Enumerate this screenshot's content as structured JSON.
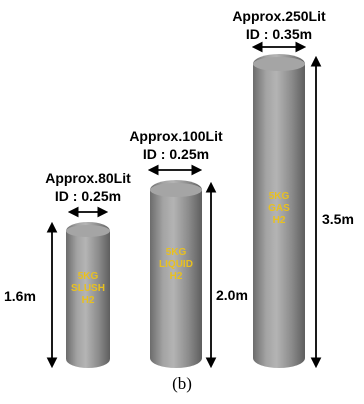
{
  "tanks": [
    {
      "capacity_label": "Approx.80Lit",
      "id_label": "ID : 0.25m",
      "content_lines": [
        "5KG",
        "SLUSH",
        "H2"
      ],
      "height_label": "1.6m"
    },
    {
      "capacity_label": "Approx.100Lit",
      "id_label": "ID : 0.25m",
      "content_lines": [
        "5KG",
        "LIQUID",
        "H2"
      ],
      "height_label": "2.0m"
    },
    {
      "capacity_label": "Approx.250Lit",
      "id_label": "ID : 0.35m",
      "content_lines": [
        "5KG",
        "GAS",
        "H2"
      ],
      "height_label": "3.5m"
    }
  ],
  "caption": "(b)",
  "colors": {
    "tank_body": "#8f8f8f",
    "tank_text": "#e8c020",
    "arrow": "#000000"
  }
}
